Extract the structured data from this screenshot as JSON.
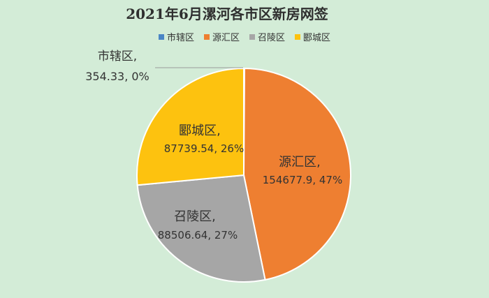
{
  "chart_data": {
    "type": "pie",
    "title": "2021年6月漯河各市区新房网签",
    "legend_position": "top",
    "slices": [
      {
        "name": "市辖区",
        "value": 354.33,
        "percent": "0%",
        "color": "#4a86c5"
      },
      {
        "name": "源汇区",
        "value": 154677.9,
        "percent": "47%",
        "color": "#ee7f31"
      },
      {
        "name": "召陵区",
        "value": 88506.64,
        "percent": "27%",
        "color": "#a6a6a6"
      },
      {
        "name": "郾城区",
        "value": 87739.54,
        "percent": "26%",
        "color": "#fdc20f"
      }
    ]
  },
  "labels": {
    "shixiaqu": {
      "name": "市辖区,",
      "value": "354.33, 0%"
    },
    "yuanhuiqu": {
      "name": "源汇区,",
      "value": "154677.9, 47%"
    },
    "zhaolingqu": {
      "name": "召陵区,",
      "value": "88506.64, 27%"
    },
    "yanchengqu": {
      "name": "郾城区,",
      "value": "87739.54, 26%"
    }
  }
}
